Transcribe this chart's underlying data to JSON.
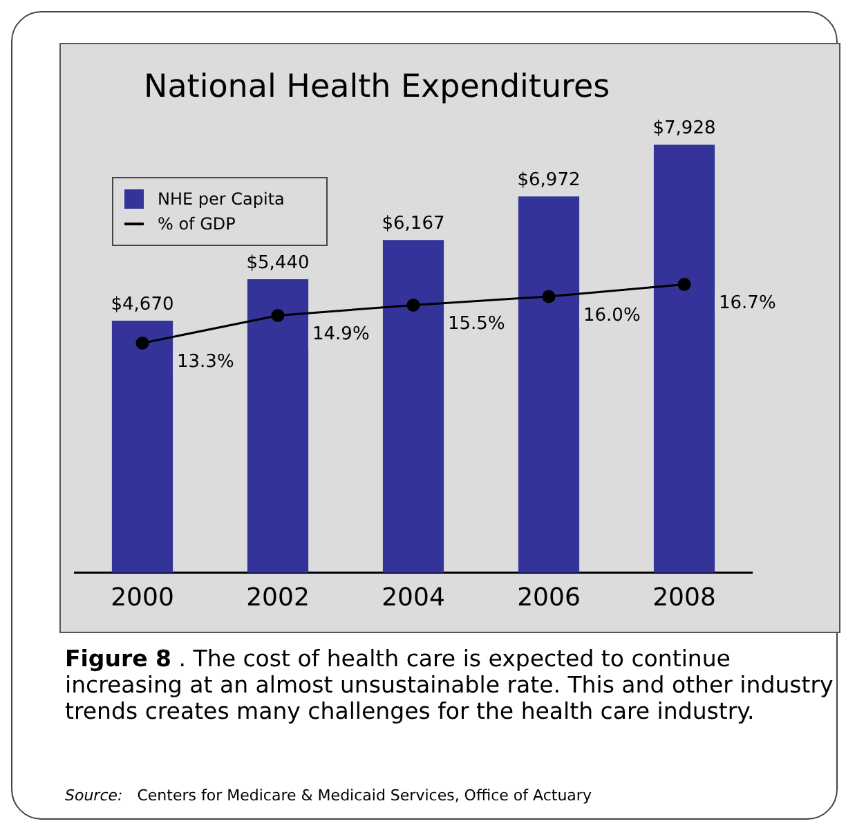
{
  "chart_data": {
    "type": "bar",
    "title": "National Health Expenditures",
    "categories": [
      "2000",
      "2002",
      "2004",
      "2006",
      "2008"
    ],
    "series": [
      {
        "name": "NHE per Capita",
        "type": "bar",
        "color": "#333399",
        "values": [
          4670,
          5440,
          6167,
          6972,
          7928
        ],
        "value_labels": [
          "$4,670",
          "$5,440",
          "$6,167",
          "$6,972",
          "$7,928"
        ]
      },
      {
        "name": "% of GDP",
        "type": "line",
        "axis": "y2",
        "color": "#000000",
        "marker": "circle",
        "values": [
          13.3,
          14.9,
          15.5,
          16.0,
          16.7
        ],
        "value_labels": [
          "13.3%",
          "14.9%",
          "15.5%",
          "16.0%",
          "16.7%"
        ]
      }
    ],
    "tick_labels": "x",
    "grid": false,
    "legend": "top left",
    "annotations": [
      "Figure 8",
      ". The cost of health care is expected to continue increasing at an almost unsustainable rate. This and other industry trends creates many challenges for the health care industry.",
      "Source:",
      "Centers for Medicare & Medicaid Services, Office of Actuary"
    ]
  }
}
